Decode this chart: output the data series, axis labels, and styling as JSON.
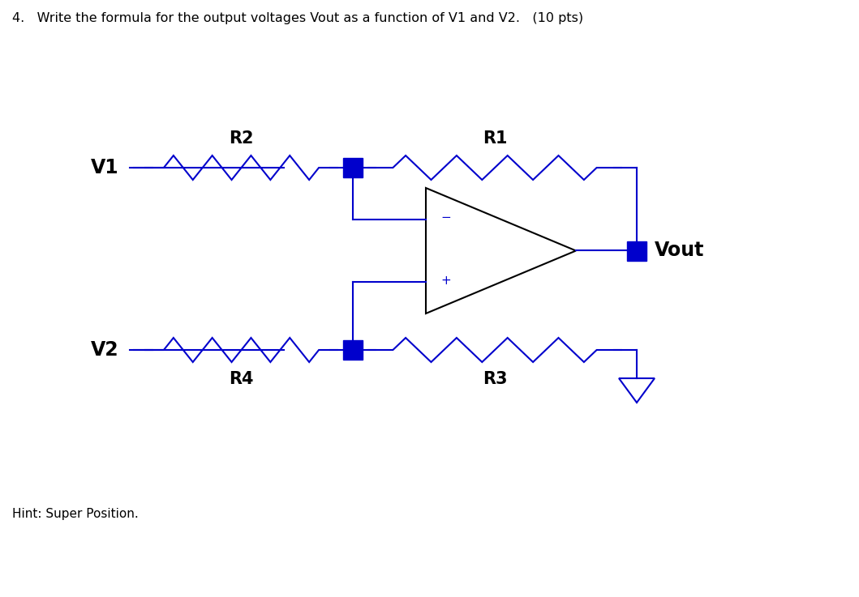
{
  "title_text": "4.   Write the formula for the output voltages Vout as a function of V1 and V2.   (10 pts)",
  "hint_text": "Hint: Super Position.",
  "circuit_color": "#0000cc",
  "opamp_color": "#000000",
  "text_color": "#000000",
  "background_color": "#ffffff",
  "label_V1": "V1",
  "label_V2": "V2",
  "label_R1": "R1",
  "label_R2": "R2",
  "label_R3": "R3",
  "label_R4": "R4",
  "label_Vout": "Vout",
  "label_minus": "−",
  "label_plus": "+",
  "figsize": [
    10.59,
    7.37
  ],
  "dpi": 100
}
